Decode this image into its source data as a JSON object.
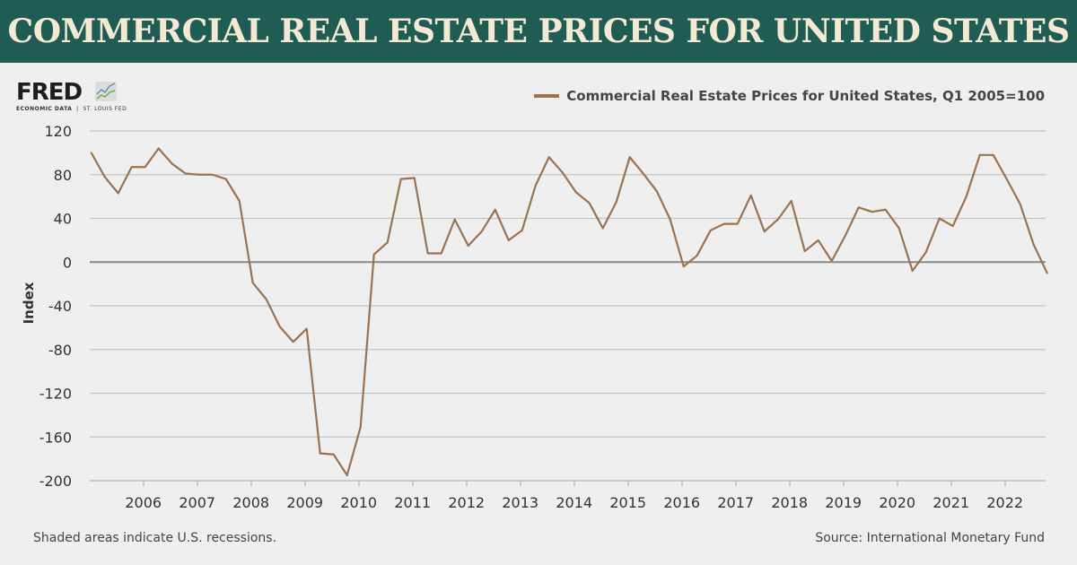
{
  "header": {
    "title": "COMMERCIAL REAL ESTATE PRICES FOR UNITED STATES"
  },
  "logo": {
    "name": "FRED",
    "tagline_left": "ECONOMIC DATA",
    "tagline_right": "ST. LOUIS FED"
  },
  "footer": {
    "note": "Shaded areas indicate U.S. recessions.",
    "source": "Source: International Monetary Fund"
  },
  "colors": {
    "header_bg": "#1f5c54",
    "line": "#9a7350"
  },
  "chart_data": {
    "type": "line",
    "title": "Commercial Real Estate Prices for United States",
    "xlabel": "",
    "ylabel": "Index",
    "ylim": [
      -200,
      120
    ],
    "yticks": [
      120,
      80,
      40,
      0,
      -40,
      -80,
      -120,
      -160,
      -200
    ],
    "xticks": [
      "2006",
      "2007",
      "2008",
      "2009",
      "2010",
      "2011",
      "2012",
      "2013",
      "2014",
      "2015",
      "2016",
      "2017",
      "2018",
      "2019",
      "2020",
      "2021",
      "2022"
    ],
    "grid": true,
    "legend_position": "top-right",
    "start": "2005 Q1",
    "frequency": "quarterly",
    "series": [
      {
        "name": "Commercial Real Estate Prices for United States, Q1 2005=100",
        "values": [
          100,
          78,
          63,
          87,
          87,
          104,
          90,
          81,
          80,
          80,
          76,
          56,
          -19,
          -34,
          -59,
          -73,
          -61,
          -175,
          -176,
          -195,
          -151,
          7,
          18,
          76,
          77,
          8,
          8,
          39,
          15,
          28,
          48,
          20,
          29,
          70,
          96,
          82,
          64,
          54,
          31,
          55,
          96,
          81,
          65,
          39,
          -4,
          6,
          29,
          35,
          35,
          61,
          28,
          39,
          56,
          10,
          20,
          1,
          24,
          50,
          46,
          48,
          31,
          -8,
          9,
          40,
          33,
          60,
          98,
          98,
          76,
          53,
          16,
          -10
        ]
      }
    ]
  }
}
